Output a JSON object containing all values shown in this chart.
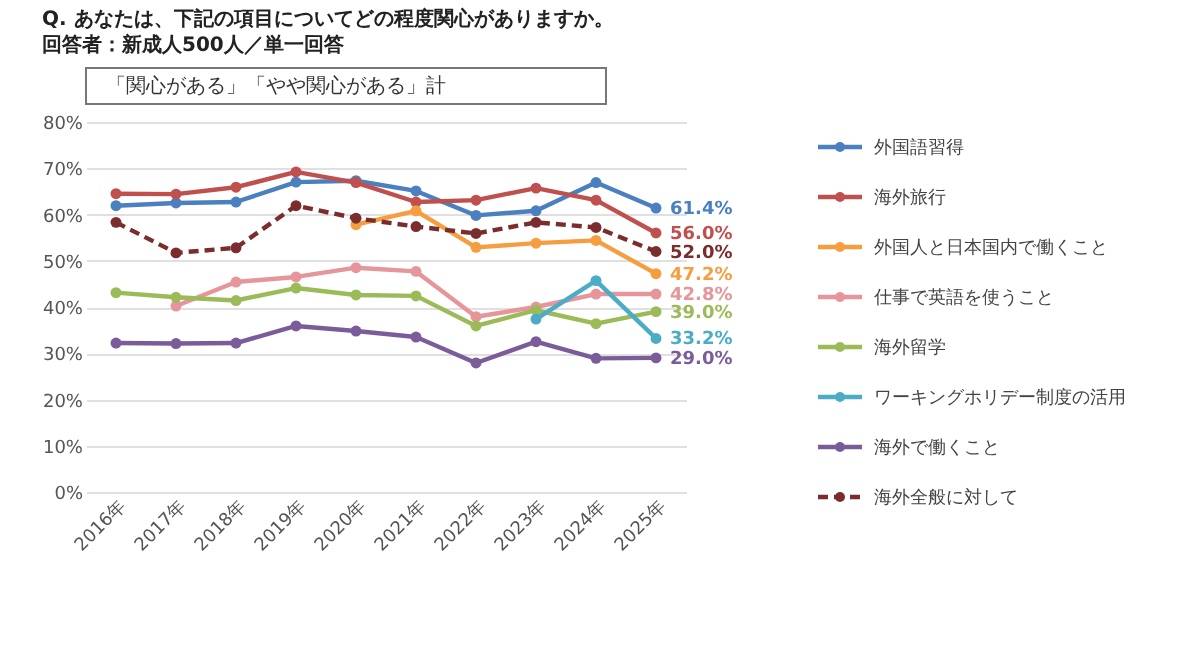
{
  "chart_data": {
    "type": "line",
    "title": "Q. あなたは、下記の項目についてどの程度関心がありますか。",
    "subtitle": "回答者：新成人500人／単一回答",
    "annotations": [
      "「関心がある」「やや関心がある」計"
    ],
    "categories": [
      "2016年",
      "2017年",
      "2018年",
      "2019年",
      "2020年",
      "2021年",
      "2022年",
      "2023年",
      "2024年",
      "2025年"
    ],
    "series": [
      {
        "name": "外国語習得",
        "color": "#4a7fc0",
        "values": [
          61.9,
          62.5,
          62.7,
          67.0,
          67.3,
          65.1,
          59.8,
          60.8,
          66.9,
          61.4
        ],
        "value_labels": [
          null,
          null,
          null,
          null,
          null,
          null,
          null,
          null,
          null,
          "61.4%"
        ]
      },
      {
        "name": "海外旅行",
        "color": "#c0504d",
        "values": [
          64.5,
          64.4,
          65.9,
          69.2,
          66.9,
          62.7,
          63.1,
          65.7,
          63.1,
          56.0
        ],
        "value_labels": [
          null,
          null,
          null,
          null,
          null,
          null,
          null,
          null,
          null,
          "56.0%"
        ]
      },
      {
        "name": "外国人と日本国内で働くこと",
        "color": "#f59d3f",
        "values": [
          null,
          null,
          null,
          null,
          57.8,
          60.8,
          52.9,
          53.8,
          54.4,
          47.2
        ],
        "value_labels": [
          null,
          null,
          null,
          null,
          null,
          null,
          null,
          null,
          null,
          "47.2%"
        ]
      },
      {
        "name": "仕事で英語を使うこと",
        "color": "#e6959a",
        "values": [
          null,
          40.2,
          45.4,
          46.5,
          48.5,
          47.7,
          37.9,
          40.0,
          42.8,
          42.8
        ],
        "value_labels": [
          null,
          null,
          null,
          null,
          null,
          null,
          null,
          null,
          null,
          "42.8%"
        ]
      },
      {
        "name": "海外留学",
        "color": "#9bbb59",
        "values": [
          43.1,
          42.1,
          41.4,
          44.1,
          42.6,
          42.4,
          35.9,
          39.3,
          36.4,
          39.0
        ],
        "value_labels": [
          null,
          null,
          null,
          null,
          null,
          null,
          null,
          null,
          null,
          "39.0%"
        ]
      },
      {
        "name": "ワーキングホリデー制度の活用",
        "color": "#4bacc6",
        "values": [
          null,
          null,
          null,
          null,
          null,
          null,
          null,
          37.4,
          45.7,
          33.2
        ],
        "value_labels": [
          null,
          null,
          null,
          null,
          null,
          null,
          null,
          null,
          null,
          "33.2%"
        ]
      },
      {
        "name": "海外で働くこと",
        "color": "#7a5c9a",
        "values": [
          32.2,
          32.1,
          32.2,
          35.9,
          34.8,
          33.5,
          27.9,
          32.5,
          28.9,
          29.0
        ],
        "value_labels": [
          null,
          null,
          null,
          null,
          null,
          null,
          null,
          null,
          null,
          "29.0%"
        ]
      },
      {
        "name": "海外全般に対して",
        "color": "#7b2c2c",
        "line_style": "dashed",
        "values": [
          58.3,
          51.7,
          52.8,
          61.9,
          59.2,
          57.4,
          55.9,
          58.3,
          57.2,
          52.0
        ],
        "value_labels": [
          null,
          null,
          null,
          null,
          null,
          null,
          null,
          null,
          null,
          "52.0%"
        ]
      }
    ],
    "ylim": [
      0,
      80
    ],
    "yticks": [
      {
        "value": 0,
        "label": "0%"
      },
      {
        "value": 10,
        "label": "10%"
      },
      {
        "value": 20,
        "label": "20%"
      },
      {
        "value": 30,
        "label": "30%"
      },
      {
        "value": 40,
        "label": "40%"
      },
      {
        "value": 50,
        "label": "50%"
      },
      {
        "value": 60,
        "label": "60%"
      },
      {
        "value": 70,
        "label": "70%"
      },
      {
        "value": 80,
        "label": "80%"
      }
    ],
    "grid": "y",
    "legend": "right",
    "marker": "circle",
    "line_style": "solid"
  }
}
